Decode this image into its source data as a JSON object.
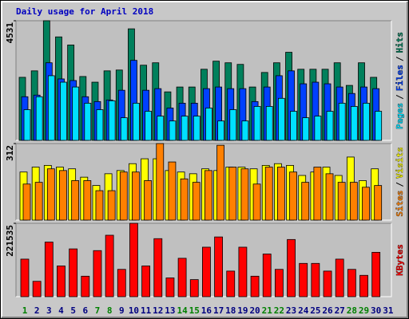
{
  "chart_data": [
    {
      "type": "bar",
      "title": "Daily usage for April 2018",
      "ylim": [
        0,
        4531
      ],
      "yticks": [
        4531
      ],
      "series": [
        {
          "name": "Hits",
          "color": "#00805c",
          "values": [
            2388,
            2633,
            4531,
            3919,
            3613,
            2419,
            2204,
            2633,
            2664,
            4225,
            2847,
            2939,
            1837,
            2021,
            2021,
            2694,
            3000,
            2939,
            2878,
            2021,
            2572,
            2939,
            3337,
            2694,
            2694,
            2694,
            2939,
            2082,
            2939,
            2388,
            0
          ]
        },
        {
          "name": "Files",
          "color": "#0040ff",
          "values": [
            1653,
            1714,
            2939,
            2327,
            2266,
            1653,
            1470,
            1531,
            1898,
            3031,
            1898,
            1959,
            1225,
            1408,
            1408,
            1959,
            2021,
            1959,
            1959,
            1470,
            2021,
            2449,
            2633,
            2143,
            2204,
            2143,
            2021,
            1776,
            2021,
            1959,
            0
          ]
        },
        {
          "name": "Pages",
          "color": "#00e0ff",
          "values": [
            1163,
            1653,
            2449,
            2204,
            2021,
            1408,
            1163,
            1500,
            857,
            1408,
            1102,
            918,
            735,
            918,
            918,
            1225,
            735,
            1163,
            735,
            1286,
            1286,
            1592,
            1102,
            857,
            918,
            1102,
            1408,
            1286,
            1408,
            1102,
            0
          ]
        }
      ],
      "legend_separator": "/"
    },
    {
      "type": "bar",
      "ylim": [
        0,
        312
      ],
      "yticks": [
        312
      ],
      "series": [
        {
          "name": "Visits",
          "color": "#ffff00",
          "values": [
            196,
            216,
            223,
            216,
            209,
            175,
            141,
            189,
            202,
            230,
            250,
            250,
            202,
            196,
            189,
            209,
            202,
            216,
            216,
            209,
            223,
            230,
            223,
            182,
            196,
            216,
            182,
            257,
            161,
            209,
            0
          ]
        },
        {
          "name": "Sites",
          "color": "#ff8000",
          "values": [
            147,
            154,
            209,
            202,
            161,
            161,
            120,
            120,
            196,
            196,
            161,
            312,
            237,
            168,
            154,
            202,
            305,
            216,
            209,
            147,
            216,
            216,
            196,
            154,
            216,
            189,
            154,
            154,
            134,
            141,
            0
          ]
        }
      ],
      "legend_separator": "/"
    },
    {
      "type": "bar",
      "ylim": [
        0,
        221535
      ],
      "yticks": [
        221535
      ],
      "categories": [
        "1",
        "2",
        "3",
        "4",
        "5",
        "6",
        "7",
        "8",
        "9",
        "10",
        "11",
        "12",
        "13",
        "14",
        "15",
        "16",
        "17",
        "18",
        "19",
        "20",
        "21",
        "22",
        "23",
        "24",
        "25",
        "26",
        "27",
        "28",
        "29",
        "30",
        "31"
      ],
      "category_colors": [
        "#008000",
        "#000080",
        "#000080",
        "#000080",
        "#000080",
        "#000080",
        "#008000",
        "#008000",
        "#000080",
        "#000080",
        "#000080",
        "#000080",
        "#000080",
        "#008000",
        "#008000",
        "#000080",
        "#000080",
        "#000080",
        "#000080",
        "#000080",
        "#008000",
        "#008000",
        "#000080",
        "#000080",
        "#000080",
        "#000080",
        "#000080",
        "#008000",
        "#008000",
        "#000080",
        "#000080"
      ],
      "series": [
        {
          "name": "KBytes",
          "color": "#ff0000",
          "values": [
            113344,
            46370,
            164864,
            92736,
            144256,
            61824,
            139104,
            185472,
            82432,
            221535,
            92736,
            175168,
            56672,
            115920,
            51520,
            149408,
            180320,
            77280,
            149408,
            61824,
            128800,
            82432,
            172592,
            100464,
            100464,
            77280,
            113344,
            82432,
            64400,
            133952,
            0
          ]
        }
      ]
    }
  ]
}
